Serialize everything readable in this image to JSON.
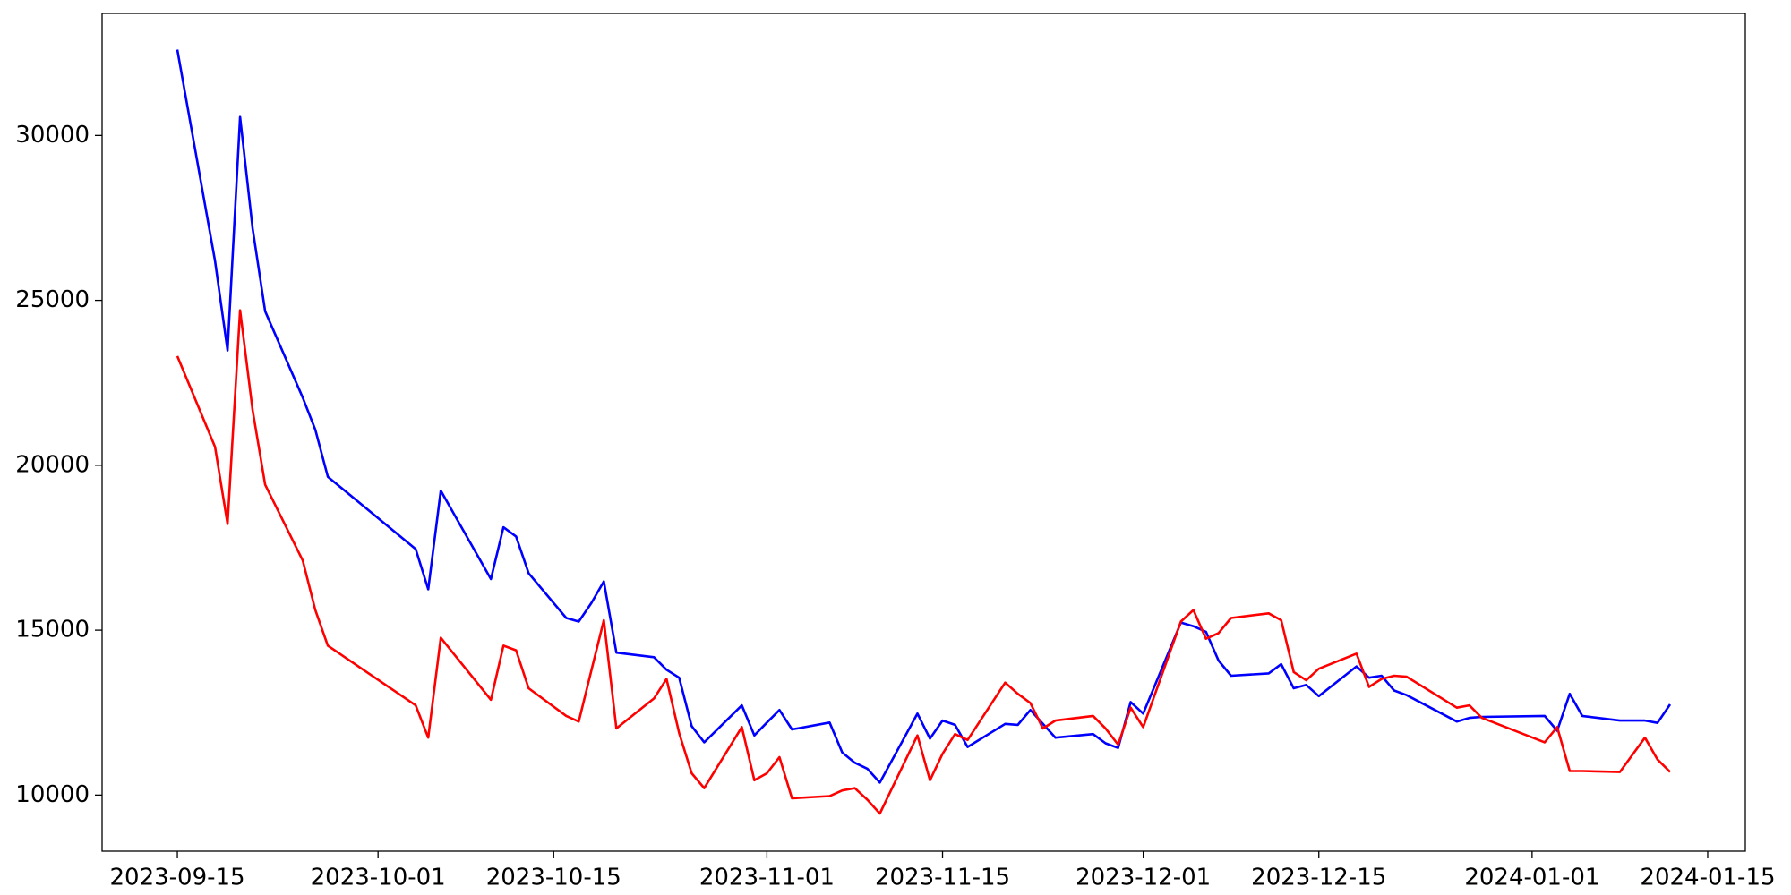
{
  "chart_data": {
    "type": "line",
    "x": [
      "2023-09-15",
      "2023-09-18",
      "2023-09-19",
      "2023-09-20",
      "2023-09-21",
      "2023-09-22",
      "2023-09-25",
      "2023-09-26",
      "2023-09-27",
      "2023-10-04",
      "2023-10-05",
      "2023-10-06",
      "2023-10-10",
      "2023-10-11",
      "2023-10-12",
      "2023-10-13",
      "2023-10-16",
      "2023-10-17",
      "2023-10-18",
      "2023-10-19",
      "2023-10-20",
      "2023-10-23",
      "2023-10-24",
      "2023-10-25",
      "2023-10-26",
      "2023-10-27",
      "2023-10-30",
      "2023-10-31",
      "2023-11-01",
      "2023-11-02",
      "2023-11-03",
      "2023-11-06",
      "2023-11-07",
      "2023-11-08",
      "2023-11-09",
      "2023-11-10",
      "2023-11-13",
      "2023-11-14",
      "2023-11-15",
      "2023-11-16",
      "2023-11-17",
      "2023-11-20",
      "2023-11-21",
      "2023-11-22",
      "2023-11-23",
      "2023-11-24",
      "2023-11-27",
      "2023-11-28",
      "2023-11-29",
      "2023-11-30",
      "2023-12-01",
      "2023-12-04",
      "2023-12-05",
      "2023-12-06",
      "2023-12-07",
      "2023-12-08",
      "2023-12-11",
      "2023-12-12",
      "2023-12-13",
      "2023-12-14",
      "2023-12-15",
      "2023-12-18",
      "2023-12-19",
      "2023-12-20",
      "2023-12-21",
      "2023-12-22",
      "2023-12-26",
      "2023-12-27",
      "2023-12-28",
      "2024-01-02",
      "2024-01-03",
      "2024-01-04",
      "2024-01-05",
      "2024-01-08",
      "2024-01-09",
      "2024-01-10",
      "2024-01-11",
      "2024-01-12"
    ],
    "series": [
      {
        "color": "#0000ff",
        "values": [
          32600,
          26200,
          23480,
          30560,
          27180,
          24670,
          22050,
          21080,
          19650,
          17460,
          16240,
          19230,
          16550,
          18120,
          17840,
          16730,
          15370,
          15260,
          15820,
          16480,
          14320,
          14180,
          13800,
          13560,
          12090,
          11600,
          12720,
          11810,
          12200,
          12580,
          11990,
          12200,
          11290,
          10980,
          10800,
          10380,
          12470,
          11710,
          12260,
          12130,
          11460,
          12160,
          12130,
          12580,
          12160,
          11740,
          11850,
          11570,
          11430,
          12820,
          12470,
          15230,
          15120,
          14950,
          14080,
          13620,
          13690,
          13970,
          13240,
          13340,
          13000,
          13900,
          13560,
          13620,
          13170,
          13030,
          12230,
          12340,
          12370,
          12400,
          11950,
          13070,
          12400,
          12260,
          12260,
          12260,
          12190,
          12750
        ]
      },
      {
        "color": "#ff0000",
        "values": [
          23310,
          20560,
          18220,
          24700,
          21670,
          19410,
          17110,
          15610,
          14530,
          12720,
          11740,
          14770,
          12890,
          14530,
          14390,
          13240,
          12400,
          12230,
          13770,
          15300,
          12020,
          12930,
          13520,
          11880,
          10660,
          10210,
          12060,
          10450,
          10660,
          11150,
          9900,
          9970,
          10140,
          10210,
          9860,
          9440,
          11810,
          10450,
          11250,
          11850,
          11670,
          13410,
          13070,
          12790,
          12020,
          12260,
          12400,
          12020,
          11530,
          12650,
          12060,
          15260,
          15610,
          14740,
          14910,
          15370,
          15510,
          15300,
          13730,
          13480,
          13830,
          14290,
          13280,
          13520,
          13620,
          13590,
          12650,
          12720,
          12340,
          11600,
          12060,
          10730,
          10730,
          10700,
          11220,
          11740,
          11080,
          10700
        ]
      }
    ],
    "xlim": [
      "2023-09-09",
      "2024-01-18"
    ],
    "xticks": [
      "2023-09-15",
      "2023-10-01",
      "2023-10-15",
      "2023-11-01",
      "2023-11-15",
      "2023-12-01",
      "2023-12-15",
      "2024-01-01",
      "2024-01-15"
    ],
    "ylim": [
      8300,
      33700
    ],
    "yticks": [
      10000,
      15000,
      20000,
      25000,
      30000
    ]
  }
}
